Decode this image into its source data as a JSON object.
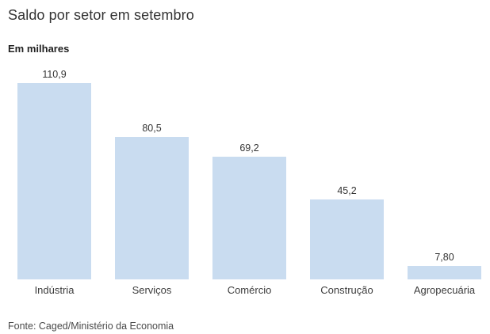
{
  "header": {
    "title": "Saldo por setor em setembro",
    "subtitle": "Em milhares"
  },
  "footer": {
    "source": "Fonte: Caged/Ministério da Economia"
  },
  "chart_data": {
    "type": "bar",
    "title": "Saldo por setor em setembro",
    "subtitle": "Em milhares",
    "source": "Fonte: Caged/Ministério da Economia",
    "categories": [
      "Indústria",
      "Serviços",
      "Comércio",
      "Construção",
      "Agropecuária"
    ],
    "values": [
      110.9,
      80.5,
      69.2,
      45.2,
      7.8
    ],
    "value_labels": [
      "110,9",
      "80,5",
      "69,2",
      "45,2",
      "7,80"
    ],
    "xlabel": "",
    "ylabel": "",
    "ylim": [
      0,
      110.9
    ],
    "grid": false,
    "legend": "none",
    "axis_lines": false,
    "colors": {
      "bar": "#c9dcf0",
      "title_text": "#333333",
      "value_text": "#333333",
      "category_text": "#3d3d3d",
      "source_text": "#4a4a4a",
      "background": "#ffffff"
    }
  }
}
